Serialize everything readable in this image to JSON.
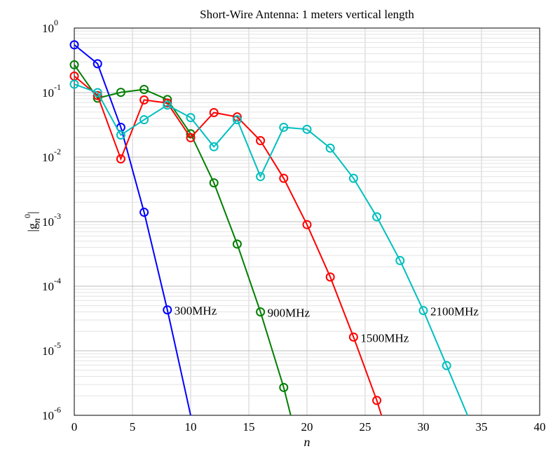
{
  "chart_data": {
    "type": "line",
    "title": "Short-Wire Antenna: 1 meters vertical length",
    "xlabel": "n",
    "ylabel": "|g_n^0|",
    "yscale": "log",
    "xlim": [
      0,
      40
    ],
    "ylim": [
      1e-06,
      1
    ],
    "x_ticks": [
      0,
      5,
      10,
      15,
      20,
      25,
      30,
      35,
      40
    ],
    "y_ticks": [
      {
        "value": 1,
        "mantissa": "10",
        "exp": "0"
      },
      {
        "value": 0.1,
        "mantissa": "10",
        "exp": "-1"
      },
      {
        "value": 0.01,
        "mantissa": "10",
        "exp": "-2"
      },
      {
        "value": 0.001,
        "mantissa": "10",
        "exp": "-3"
      },
      {
        "value": 0.0001,
        "mantissa": "10",
        "exp": "-4"
      },
      {
        "value": 1e-05,
        "mantissa": "10",
        "exp": "-5"
      },
      {
        "value": 1e-06,
        "mantissa": "10",
        "exp": "-6"
      }
    ],
    "grid": true,
    "series": [
      {
        "name": "300MHz",
        "color": "#0000ff",
        "x": [
          0,
          2,
          4,
          6,
          8,
          10
        ],
        "y": [
          0.55,
          0.28,
          0.029,
          0.0014,
          4.3e-05,
          1e-06
        ],
        "markers": [
          true,
          true,
          true,
          true,
          true,
          false
        ],
        "label_x": 8,
        "label_y": 4.3e-05
      },
      {
        "name": "900MHz",
        "color": "#007f00",
        "x": [
          0,
          2,
          4,
          6,
          8,
          10,
          12,
          14,
          16,
          18,
          18.6
        ],
        "y": [
          0.27,
          0.082,
          0.101,
          0.112,
          0.078,
          0.023,
          0.004,
          0.00045,
          4e-05,
          2.7e-06,
          1e-06
        ],
        "markers": [
          true,
          true,
          true,
          true,
          true,
          true,
          true,
          true,
          true,
          true,
          false
        ],
        "label_x": 16,
        "label_y": 4e-05
      },
      {
        "name": "1500MHz",
        "color": "#ff0000",
        "x": [
          0,
          2,
          4,
          6,
          8,
          10,
          12,
          14,
          16,
          18,
          20,
          22,
          24,
          26,
          26.4
        ],
        "y": [
          0.18,
          0.09,
          0.0094,
          0.077,
          0.069,
          0.02,
          0.049,
          0.042,
          0.018,
          0.0047,
          0.0009,
          0.000139,
          1.63e-05,
          1.7e-06,
          1e-06
        ],
        "markers": [
          true,
          true,
          true,
          true,
          true,
          true,
          true,
          true,
          true,
          true,
          true,
          true,
          true,
          true,
          false
        ],
        "label_x": 24,
        "label_y": 1.63e-05
      },
      {
        "name": "2100MHz",
        "color": "#00bfbf",
        "x": [
          0,
          2,
          4,
          6,
          8,
          10,
          12,
          14,
          16,
          18,
          20,
          22,
          24,
          26,
          28,
          30,
          32,
          33.8
        ],
        "y": [
          0.135,
          0.1,
          0.022,
          0.038,
          0.064,
          0.041,
          0.0145,
          0.038,
          0.005,
          0.029,
          0.027,
          0.0138,
          0.0047,
          0.00119,
          0.00025,
          4.2e-05,
          5.9e-06,
          1e-06
        ],
        "markers": [
          true,
          true,
          true,
          true,
          true,
          true,
          true,
          true,
          true,
          true,
          true,
          true,
          true,
          true,
          true,
          true,
          true,
          false
        ],
        "label_x": 30,
        "label_y": 4.2e-05
      }
    ]
  }
}
